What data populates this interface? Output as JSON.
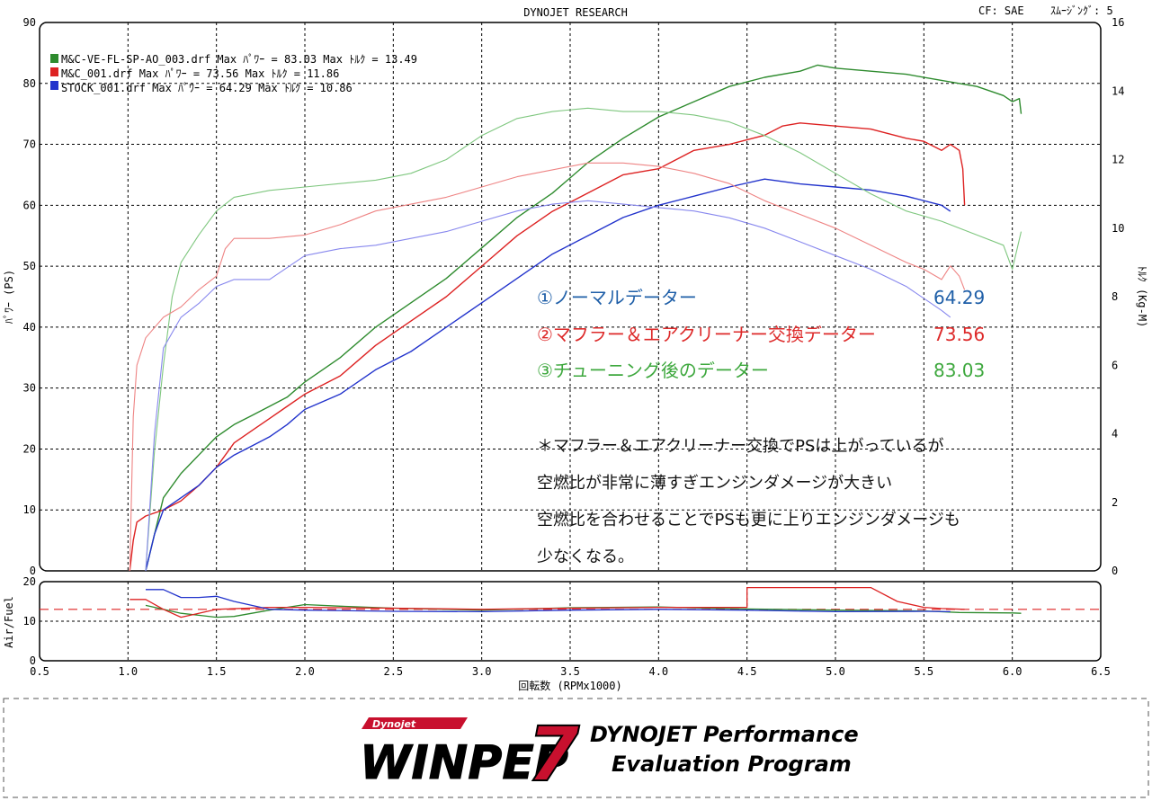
{
  "header": {
    "title": "DYNOJET  RESEARCH",
    "cf": "CF: SAE",
    "smoothing": "ｽﾑｰｼﾞﾝｸﾞ: 5"
  },
  "legend": [
    {
      "text": "M&C-VE-FL-SP-AO_003.drf Max ﾊﾟﾜｰ = 83.03     Max ﾄﾙｸ = 13.49",
      "color": "#2e8b2e"
    },
    {
      "text": "M&C_001.drf Max ﾊﾟﾜｰ = 73.56      Max ﾄﾙｸ = 11.86",
      "color": "#dd2222"
    },
    {
      "text": "STOCK_001.drf Max ﾊﾟﾜｰ = 64.29      Max ﾄﾙｸ = 10.86",
      "color": "#2233cc"
    }
  ],
  "annotations": {
    "stock": {
      "label": "①ノーマルデーター",
      "value": "64.29",
      "color": "#1f5fa8"
    },
    "muffler": {
      "label": "②マフラー＆エアクリーナー交換データー",
      "value": "73.56",
      "color": "#dd2a2a"
    },
    "tuned": {
      "label": "③チューニング後のデーター",
      "value": "83.03",
      "color": "#3ea83e"
    },
    "note_lines": [
      "＊マフラー＆エアクリーナー交換でPSは上がっているが",
      "空燃比が非常に薄すぎエンジンダメージが大きい",
      "空燃比を合わせることでPSも更に上りエンジンダメージも",
      "少なくなる。"
    ]
  },
  "footer": {
    "brand_small": "Dynojet",
    "brand_big": "WINPEP",
    "brand_number": "7",
    "tagline_1": "DYNOJET Performance",
    "tagline_2": "Evaluation Program"
  },
  "chart_data": [
    {
      "type": "line",
      "title": "DYNOJET  RESEARCH",
      "xlabel": "回転数 (RPMx1000)",
      "ylabel": "ﾊﾟﾜｰ (PS)",
      "y2label": "ﾄﾙｸ (Kg-M)",
      "xlim": [
        0.5,
        6.5
      ],
      "ylim": [
        0,
        90
      ],
      "y2lim": [
        0,
        16
      ],
      "x_ticks": [
        "0.5",
        "1.0",
        "1.5",
        "2.0",
        "2.5",
        "3.0",
        "3.5",
        "4.0",
        "4.5",
        "5.0",
        "5.5",
        "6.0",
        "6.5"
      ],
      "y_ticks": [
        "0",
        "10",
        "20",
        "30",
        "40",
        "50",
        "60",
        "70",
        "80",
        "90"
      ],
      "y2_ticks": [
        "0",
        "2",
        "4",
        "6",
        "8",
        "10",
        "12",
        "14",
        "16"
      ],
      "grid": true,
      "legend_position": "top-left",
      "series": [
        {
          "name": "M&C-VE-FL-SP-AO_003.drf",
          "measure": "power",
          "axis": "left",
          "color": "#2e8b2e",
          "x": [
            1.1,
            1.15,
            1.2,
            1.3,
            1.4,
            1.5,
            1.6,
            1.7,
            1.8,
            1.9,
            2.0,
            2.2,
            2.4,
            2.6,
            2.8,
            3.0,
            3.2,
            3.4,
            3.6,
            3.8,
            4.0,
            4.2,
            4.4,
            4.6,
            4.8,
            4.9,
            5.0,
            5.2,
            5.4,
            5.6,
            5.8,
            5.95,
            6.0,
            6.04,
            6.05
          ],
          "y": [
            0,
            6,
            12,
            16,
            19,
            22,
            24,
            25.5,
            27,
            28.5,
            31,
            35,
            40,
            44,
            48,
            53,
            58,
            62,
            67,
            71,
            74.5,
            77,
            79.5,
            81,
            82,
            83,
            82.5,
            82,
            81.5,
            80.5,
            79.5,
            78,
            77,
            77.5,
            75
          ]
        },
        {
          "name": "M&C_001.drf",
          "measure": "power",
          "axis": "left",
          "color": "#dd2222",
          "x": [
            1.01,
            1.03,
            1.05,
            1.1,
            1.2,
            1.3,
            1.4,
            1.5,
            1.6,
            1.7,
            1.8,
            1.9,
            2.0,
            2.2,
            2.4,
            2.6,
            2.8,
            3.0,
            3.2,
            3.4,
            3.6,
            3.8,
            4.0,
            4.2,
            4.4,
            4.6,
            4.7,
            4.8,
            5.0,
            5.2,
            5.4,
            5.5,
            5.6,
            5.65,
            5.7,
            5.72,
            5.73
          ],
          "y": [
            0,
            5,
            8,
            9,
            10,
            11.5,
            14,
            17,
            21,
            23,
            25,
            27,
            29,
            32,
            37,
            41,
            45,
            50,
            55,
            59,
            62,
            65,
            66,
            69,
            70,
            71.5,
            73,
            73.5,
            73,
            72.5,
            71,
            70.5,
            69,
            70,
            69,
            66,
            60
          ]
        },
        {
          "name": "STOCK_001.drf",
          "measure": "power",
          "axis": "left",
          "color": "#2233cc",
          "x": [
            1.1,
            1.15,
            1.2,
            1.3,
            1.4,
            1.5,
            1.6,
            1.7,
            1.8,
            1.9,
            2.0,
            2.2,
            2.4,
            2.6,
            2.8,
            3.0,
            3.2,
            3.4,
            3.6,
            3.8,
            4.0,
            4.2,
            4.4,
            4.6,
            4.8,
            5.0,
            5.2,
            5.4,
            5.6,
            5.65
          ],
          "y": [
            0,
            6,
            10,
            12,
            14,
            17,
            19,
            20.5,
            22,
            24,
            26.5,
            29,
            33,
            36,
            40,
            44,
            48,
            52,
            55,
            58,
            60,
            61.5,
            63,
            64.3,
            63.5,
            63,
            62.5,
            61.5,
            60,
            59
          ]
        },
        {
          "name": "M&C-VE-FL-SP-AO_003.drf",
          "measure": "torque",
          "axis": "right",
          "color": "#7fc77f",
          "x": [
            1.1,
            1.15,
            1.2,
            1.25,
            1.3,
            1.4,
            1.5,
            1.6,
            1.8,
            2.0,
            2.2,
            2.4,
            2.6,
            2.8,
            3.0,
            3.2,
            3.4,
            3.6,
            3.8,
            4.0,
            4.2,
            4.4,
            4.6,
            4.8,
            5.0,
            5.2,
            5.4,
            5.6,
            5.8,
            5.95,
            6.0,
            6.05
          ],
          "y": [
            0,
            3.5,
            6,
            8,
            9,
            9.8,
            10.5,
            10.9,
            11.1,
            11.2,
            11.3,
            11.4,
            11.6,
            12,
            12.7,
            13.2,
            13.4,
            13.5,
            13.4,
            13.4,
            13.3,
            13.1,
            12.7,
            12.2,
            11.6,
            11,
            10.5,
            10.2,
            9.8,
            9.5,
            8.8,
            9.9
          ]
        },
        {
          "name": "M&C_001.drf",
          "measure": "torque",
          "axis": "right",
          "color": "#ee8484",
          "x": [
            1.01,
            1.03,
            1.05,
            1.1,
            1.2,
            1.3,
            1.4,
            1.5,
            1.55,
            1.6,
            1.8,
            2.0,
            2.2,
            2.4,
            2.6,
            2.8,
            3.0,
            3.2,
            3.4,
            3.6,
            3.8,
            4.0,
            4.2,
            4.4,
            4.6,
            4.8,
            5.0,
            5.2,
            5.4,
            5.5,
            5.6,
            5.65,
            5.7,
            5.73
          ],
          "y": [
            0,
            4.5,
            6,
            6.8,
            7.4,
            7.7,
            8.2,
            8.6,
            9.4,
            9.7,
            9.7,
            9.8,
            10.1,
            10.5,
            10.7,
            10.9,
            11.2,
            11.5,
            11.7,
            11.9,
            11.9,
            11.8,
            11.6,
            11.3,
            10.8,
            10.4,
            10,
            9.5,
            9.0,
            8.8,
            8.5,
            8.9,
            8.6,
            8.2
          ]
        },
        {
          "name": "STOCK_001.drf",
          "measure": "torque",
          "axis": "right",
          "color": "#8888ee",
          "x": [
            1.1,
            1.15,
            1.2,
            1.3,
            1.4,
            1.5,
            1.6,
            1.8,
            2.0,
            2.2,
            2.4,
            2.6,
            2.8,
            3.0,
            3.2,
            3.4,
            3.6,
            3.8,
            4.0,
            4.2,
            4.4,
            4.6,
            4.8,
            5.0,
            5.2,
            5.4,
            5.6,
            5.65
          ],
          "y": [
            0,
            4,
            6.5,
            7.4,
            7.8,
            8.3,
            8.5,
            8.5,
            9.2,
            9.4,
            9.5,
            9.7,
            9.9,
            10.2,
            10.5,
            10.7,
            10.8,
            10.7,
            10.6,
            10.5,
            10.3,
            10,
            9.6,
            9.2,
            8.8,
            8.3,
            7.6,
            7.4
          ]
        }
      ]
    },
    {
      "type": "line",
      "ylabel": "Air/Fuel",
      "xlim": [
        0.5,
        6.5
      ],
      "ylim": [
        0,
        20
      ],
      "x_ticks": [
        "0.5",
        "1.0",
        "1.5",
        "2.0",
        "2.5",
        "3.0",
        "3.5",
        "4.0",
        "4.5",
        "5.0",
        "5.5",
        "6.0",
        "6.5"
      ],
      "y_ticks": [
        "0",
        "10",
        "20"
      ],
      "grid": true,
      "reference_line": 13,
      "series": [
        {
          "name": "M&C-VE-FL-SP-AO_003.drf",
          "color": "#2e8b2e",
          "x": [
            1.1,
            1.2,
            1.3,
            1.4,
            1.5,
            1.6,
            1.8,
            2.0,
            2.2,
            2.5,
            3.0,
            3.5,
            4.0,
            4.5,
            5.0,
            5.5,
            5.7,
            6.0,
            6.05
          ],
          "y": [
            14,
            13,
            12,
            11.5,
            11,
            11.2,
            12.8,
            14.2,
            13.8,
            13.3,
            12.8,
            13.4,
            13.6,
            13.1,
            12.8,
            12.6,
            12.2,
            12.1,
            12.0
          ]
        },
        {
          "name": "M&C_001.drf",
          "color": "#dd2222",
          "x": [
            1.01,
            1.1,
            1.2,
            1.3,
            1.4,
            1.5,
            1.8,
            2.0,
            2.5,
            3.0,
            3.5,
            4.0,
            4.5,
            4.5,
            5.0,
            5.2,
            5.35,
            5.5,
            5.6,
            5.73
          ],
          "y": [
            15.5,
            15.5,
            13,
            11,
            12,
            13,
            13.5,
            13.5,
            13.3,
            13,
            13.3,
            13.5,
            13.5,
            18.5,
            18.5,
            18.5,
            15,
            13.5,
            13.2,
            13
          ]
        },
        {
          "name": "STOCK_001.drf",
          "color": "#2233cc",
          "x": [
            1.1,
            1.2,
            1.3,
            1.4,
            1.5,
            1.6,
            1.8,
            2.0,
            2.5,
            3.0,
            3.5,
            4.0,
            4.5,
            5.0,
            5.5,
            5.65
          ],
          "y": [
            18,
            18,
            16,
            16,
            16.3,
            15,
            13,
            12.8,
            12.5,
            12.4,
            12.8,
            13,
            12.8,
            12.4,
            12.5,
            12.4
          ]
        }
      ]
    }
  ]
}
